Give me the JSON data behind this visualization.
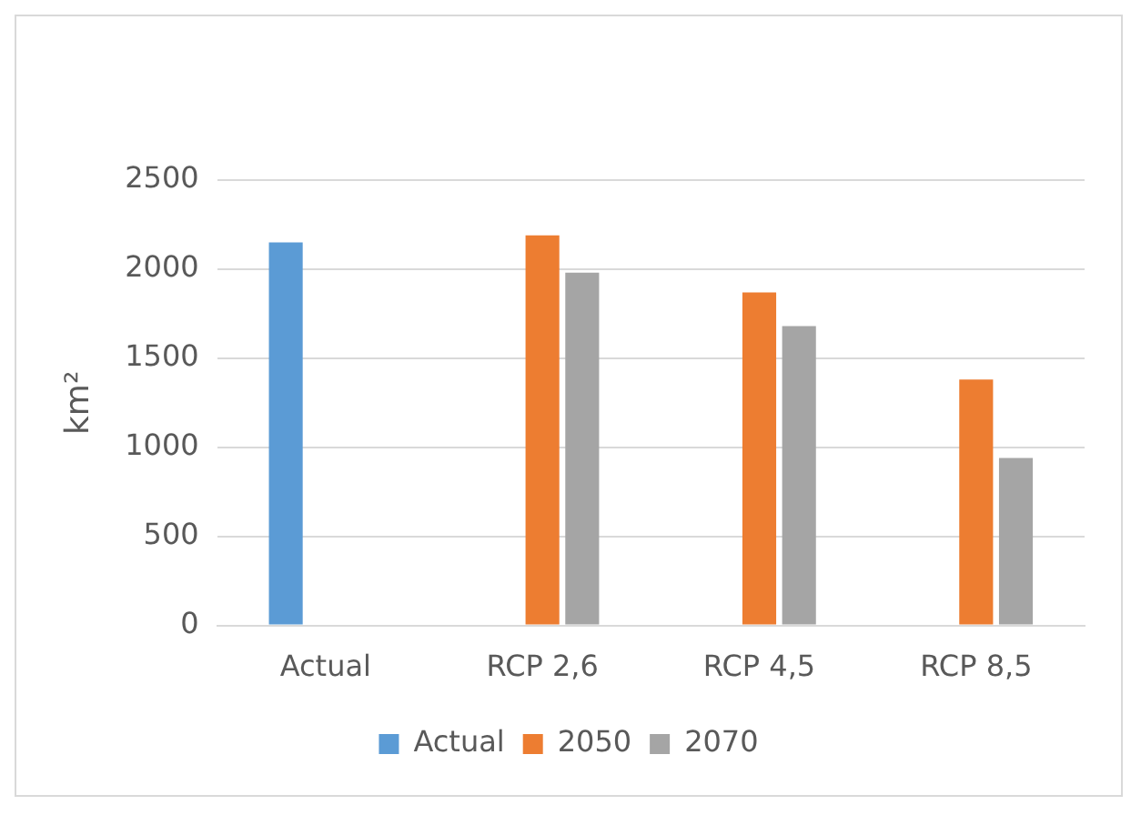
{
  "chart_data": {
    "type": "bar",
    "ylabel": "km²",
    "categories": [
      "Actual",
      "RCP 2,6",
      "RCP 4,5",
      "RCP 8,5"
    ],
    "series": [
      {
        "name": "Actual",
        "color": "#5b9bd5",
        "values": [
          2150,
          null,
          null,
          null
        ]
      },
      {
        "name": "2050",
        "color": "#ed7d31",
        "values": [
          null,
          2190,
          1870,
          1380
        ]
      },
      {
        "name": "2070",
        "color": "#a5a5a5",
        "values": [
          null,
          1980,
          1680,
          940
        ]
      }
    ],
    "ylim": [
      0,
      2500
    ],
    "yticks": [
      0,
      500,
      1000,
      1500,
      2000,
      2500
    ],
    "grid": "y",
    "legend": "bottom"
  }
}
